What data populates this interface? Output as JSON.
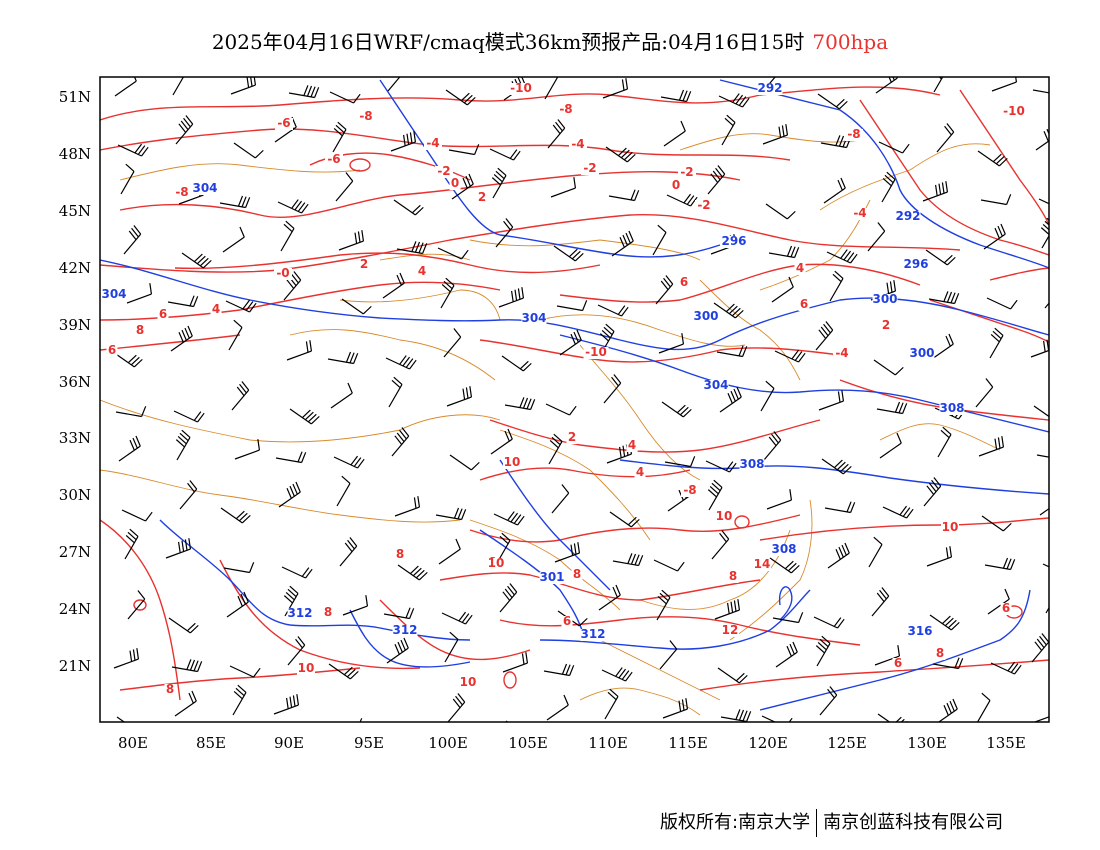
{
  "title": {
    "main": "2025年04月16日WRF/cmaq模式36km预报产品:04月16日15时",
    "level": "700hpa"
  },
  "axes": {
    "lon_ticks": [
      "80E",
      "85E",
      "90E",
      "95E",
      "100E",
      "105E",
      "110E",
      "115E",
      "120E",
      "125E",
      "130E",
      "135E"
    ],
    "lat_ticks": [
      "51N",
      "48N",
      "45N",
      "42N",
      "39N",
      "36N",
      "33N",
      "30N",
      "27N",
      "24N",
      "21N"
    ]
  },
  "contour_labels": {
    "geopotential_blue": [
      "292",
      "304",
      "296",
      "292",
      "296",
      "300",
      "300",
      "304",
      "304",
      "300",
      "304",
      "308",
      "308",
      "308",
      "312",
      "301",
      "312",
      "312",
      "316"
    ],
    "temperature_red": [
      "-10",
      "-8",
      "-8",
      "-6",
      "-6",
      "-4",
      "-4",
      "-2",
      "-2",
      "0",
      "0",
      "2",
      "-2",
      "-4",
      "-8",
      "-8",
      "-10",
      "2",
      "-4",
      "-2",
      "-0",
      "2",
      "4",
      "6",
      "8",
      "6",
      "4",
      "4",
      "2",
      "4",
      "4",
      "-8",
      "-10",
      "6",
      "8",
      "8",
      "6",
      "6",
      "8",
      "6",
      "8",
      "14",
      "10",
      "12",
      "8",
      "10",
      "10",
      "10",
      "8",
      "6",
      "6",
      "10",
      "10"
    ]
  },
  "colors": {
    "temperature_contour": "#e8322f",
    "geopotential_contour": "#1f3fe0",
    "terrain_boundary": "#d98a2c",
    "wind_barb": "#000000",
    "level_text": "#e8322f"
  },
  "footer": {
    "copyright": "版权所有:南京大学",
    "company": "南京创蓝科技有限公司"
  }
}
